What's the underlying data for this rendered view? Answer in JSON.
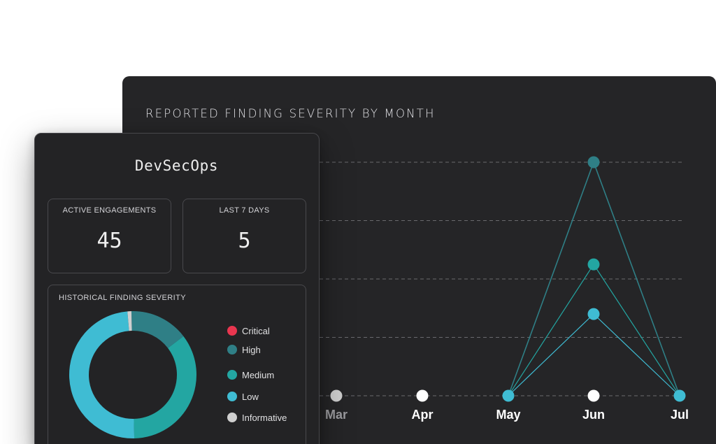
{
  "line_panel": {
    "title": "REPORTED FINDING SEVERITY BY MONTH"
  },
  "summary_panel": {
    "title": "DevSecOps",
    "stats": [
      {
        "label": "ACTIVE ENGAGEMENTS",
        "value": "45"
      },
      {
        "label": "LAST 7 DAYS",
        "value": "5"
      }
    ],
    "severity": {
      "title": "HISTORICAL FINDING SEVERITY",
      "legend": [
        {
          "label": "Critical",
          "color": "#e8364f"
        },
        {
          "label": "High",
          "color": "#2f7f86"
        },
        {
          "label": "Medium",
          "color": "#23a6a2"
        },
        {
          "label": "Low",
          "color": "#3fbcd3"
        },
        {
          "label": "Informative",
          "color": "#cfcfcf"
        }
      ]
    }
  },
  "chart_data": [
    {
      "type": "line",
      "title": "REPORTED FINDING SEVERITY BY MONTH",
      "categories": [
        "Mar",
        "Apr",
        "May",
        "Jun",
        "Jul"
      ],
      "grid": true,
      "ylim": [
        0,
        4
      ],
      "baseline_point_colors": [
        "#cfcfcf",
        "#ffffff",
        "#3fbcd3",
        "#ffffff",
        "#3fbcd3"
      ],
      "series": [
        {
          "color": "#2f7f86",
          "values": [
            0,
            0,
            0,
            4,
            0
          ]
        },
        {
          "color": "#23a6a2",
          "values": [
            0,
            0,
            0,
            2.25,
            0
          ]
        },
        {
          "color": "#3fbcd3",
          "values": [
            0,
            0,
            0,
            1.4,
            0
          ]
        }
      ]
    },
    {
      "type": "pie",
      "title": "HISTORICAL FINDING SEVERITY",
      "labels": [
        "Critical",
        "High",
        "Medium",
        "Low",
        "Informative"
      ],
      "values": [
        0,
        15,
        35,
        49,
        1
      ],
      "colors": [
        "#e8364f",
        "#2f7f86",
        "#23a6a2",
        "#3fbcd3",
        "#cfcfcf"
      ]
    }
  ]
}
